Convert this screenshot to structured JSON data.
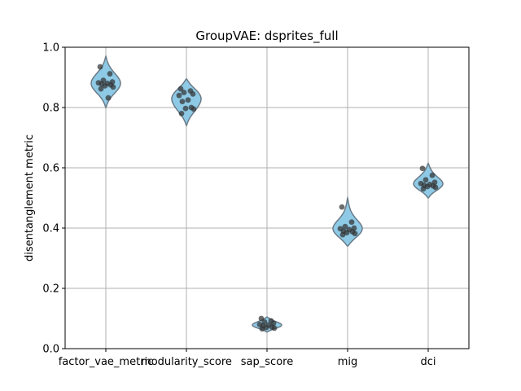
{
  "chart_data": {
    "type": "violin",
    "title": "GroupVAE: dsprites_full",
    "xlabel": "",
    "ylabel": "disentanglement metric",
    "ylim": [
      0.0,
      1.0
    ],
    "yticks": [
      "0.0",
      "0.2",
      "0.4",
      "0.6",
      "0.8",
      "1.0"
    ],
    "grid": true,
    "categories": [
      "factor_vae_metric",
      "modularity_score",
      "sap_score",
      "mig",
      "dci"
    ],
    "series": [
      {
        "category": "factor_vae_metric",
        "points": [
          0.935,
          0.912,
          0.89,
          0.885,
          0.882,
          0.88,
          0.878,
          0.875,
          0.872,
          0.868,
          0.862,
          0.832
        ],
        "violin_min": 0.8,
        "violin_max": 0.97,
        "peak": 0.88
      },
      {
        "category": "modularity_score",
        "points": [
          0.862,
          0.855,
          0.85,
          0.845,
          0.84,
          0.825,
          0.82,
          0.8,
          0.797,
          0.795,
          0.78
        ],
        "violin_min": 0.74,
        "violin_max": 0.895,
        "peak": 0.84
      },
      {
        "category": "sap_score",
        "points": [
          0.1,
          0.092,
          0.088,
          0.084,
          0.08,
          0.078,
          0.075,
          0.072,
          0.07,
          0.068,
          0.066
        ],
        "violin_min": 0.055,
        "violin_max": 0.105,
        "peak": 0.08
      },
      {
        "category": "mig",
        "points": [
          0.47,
          0.42,
          0.405,
          0.4,
          0.398,
          0.395,
          0.39,
          0.388,
          0.385,
          0.382,
          0.378
        ],
        "violin_min": 0.34,
        "violin_max": 0.5,
        "peak": 0.39
      },
      {
        "category": "dci",
        "points": [
          0.598,
          0.575,
          0.56,
          0.552,
          0.548,
          0.545,
          0.542,
          0.54,
          0.538,
          0.535,
          0.53
        ],
        "violin_min": 0.5,
        "violin_max": 0.615,
        "peak": 0.542
      }
    ],
    "colors": {
      "violin_fill": "#8ecae6",
      "violin_edge": "#6b7b88",
      "points": "#333333",
      "grid": "#b0b0b0"
    }
  }
}
